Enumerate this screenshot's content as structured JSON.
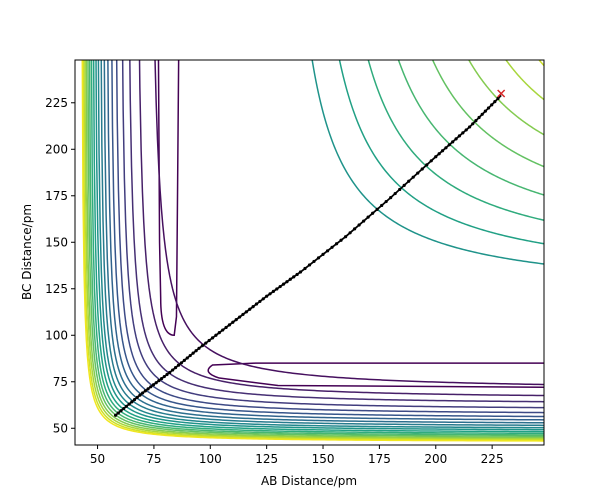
{
  "chart_data": {
    "type": "contour",
    "xlabel": "AB Distance/pm",
    "ylabel": "BC Distance/pm",
    "xlim": [
      40,
      248
    ],
    "ylim": [
      41,
      248
    ],
    "xticks": [
      50,
      75,
      100,
      125,
      150,
      175,
      200,
      225
    ],
    "yticks": [
      50,
      75,
      100,
      125,
      150,
      175,
      200,
      225
    ],
    "grid": false,
    "colormap": [
      "#440154",
      "#482878",
      "#3e4a89",
      "#31688e",
      "#26828e",
      "#1f9e89",
      "#35b779",
      "#6ece58",
      "#b5de2b",
      "#fde725"
    ],
    "contour_levels": [
      {
        "level": 1,
        "color": "#440154",
        "shape": "well",
        "valley_x": 85,
        "valley_y": 85
      },
      {
        "level": 2,
        "color": "#46105f",
        "shape": "hyperbola",
        "x_asym": 72,
        "y_asym": 70,
        "c": 620
      },
      {
        "level": 3,
        "color": "#472069",
        "shape": "hyperbola",
        "x_asym": 66.5,
        "y_asym": 65.5,
        "c": 380
      },
      {
        "level": 4,
        "color": "#462f74",
        "shape": "hyperbola",
        "x_asym": 62.5,
        "y_asym": 62.5,
        "c": 330
      },
      {
        "level": 5,
        "color": "#423d7e",
        "shape": "hyperbola",
        "x_asym": 59.5,
        "y_asym": 59.5,
        "c": 300
      },
      {
        "level": 6,
        "color": "#3d4a86",
        "shape": "hyperbola",
        "x_asym": 57,
        "y_asym": 57,
        "c": 275
      },
      {
        "level": 7,
        "color": "#37568b",
        "shape": "hyperbola",
        "x_asym": 55,
        "y_asym": 55,
        "c": 255
      },
      {
        "level": 8,
        "color": "#31638d",
        "shape": "hyperbola",
        "x_asym": 53.3,
        "y_asym": 53.3,
        "c": 240
      },
      {
        "level": 9,
        "color": "#2c6f8e",
        "shape": "hyperbola",
        "x_asym": 51.8,
        "y_asym": 51.8,
        "c": 226
      },
      {
        "level": 10,
        "color": "#277b8e",
        "shape": "hyperbola",
        "x_asym": 50.5,
        "y_asym": 50.5,
        "c": 214
      },
      {
        "level": 11,
        "color": "#22878d",
        "shape": "hyperbola",
        "x_asym": 49.3,
        "y_asym": 49.3,
        "c": 203
      },
      {
        "level": 12,
        "color": "#1f938a",
        "shape": "hyperbola",
        "x_asym": 48.3,
        "y_asym": 48.3,
        "c": 193
      },
      {
        "level": 13,
        "color": "#21a085",
        "shape": "hyperbola",
        "x_asym": 47.3,
        "y_asym": 47.3,
        "c": 184
      },
      {
        "level": 14,
        "color": "#2fab7d",
        "shape": "hyperbola",
        "x_asym": 46.4,
        "y_asym": 46.4,
        "c": 176
      },
      {
        "level": 15,
        "color": "#47b671",
        "shape": "hyperbola",
        "x_asym": 45.6,
        "y_asym": 45.6,
        "c": 168
      },
      {
        "level": 16,
        "color": "#63c162",
        "shape": "hyperbola",
        "x_asym": 44.9,
        "y_asym": 44.9,
        "c": 161
      },
      {
        "level": 17,
        "color": "#84cb50",
        "shape": "hyperbola",
        "x_asym": 44.2,
        "y_asym": 44.2,
        "c": 155
      },
      {
        "level": 18,
        "color": "#a8d63c",
        "shape": "hyperbola",
        "x_asym": 43.6,
        "y_asym": 43.6,
        "c": 149
      },
      {
        "level": 19,
        "color": "#cde028",
        "shape": "hyperbola",
        "x_asym": 43.0,
        "y_asym": 43.0,
        "c": 144
      },
      {
        "level": 20,
        "color": "#f0e61f",
        "shape": "hyperbola",
        "x_asym": 42.5,
        "y_asym": 42.5,
        "c": 139
      }
    ],
    "upper_right_contours": [
      {
        "color": "#1f938a",
        "x_asym": 128,
        "y_asym": 120,
        "c": 2200
      },
      {
        "color": "#21a085",
        "x_asym": 136,
        "y_asym": 126,
        "c": 2600
      },
      {
        "color": "#2fab7d",
        "x_asym": 144,
        "y_asym": 133,
        "c": 3000
      },
      {
        "color": "#47b671",
        "x_asym": 152,
        "y_asym": 140,
        "c": 3400
      },
      {
        "color": "#63c162",
        "x_asym": 161,
        "y_asym": 147,
        "c": 3800
      },
      {
        "color": "#84cb50",
        "x_asym": 170,
        "y_asym": 154,
        "c": 4200
      },
      {
        "color": "#a8d63c",
        "x_asym": 180,
        "y_asym": 162,
        "c": 4400
      },
      {
        "color": "#cde028",
        "x_asym": 192,
        "y_asym": 170,
        "c": 4200
      },
      {
        "color": "#f0e61f",
        "x_asym": 205,
        "y_asym": 178,
        "c": 3600
      }
    ],
    "trajectory": {
      "color": "#000000",
      "marker": ".",
      "points": [
        [
          58,
          57
        ],
        [
          70,
          69
        ],
        [
          82,
          80
        ],
        [
          95,
          93
        ],
        [
          110,
          107
        ],
        [
          125,
          121
        ],
        [
          140,
          134
        ],
        [
          160,
          153
        ],
        [
          180,
          174
        ],
        [
          200,
          196
        ],
        [
          215,
          212
        ],
        [
          229,
          229
        ]
      ]
    },
    "end_marker": {
      "x": 229,
      "y": 230,
      "symbol": "x",
      "color": "#d62728"
    }
  }
}
